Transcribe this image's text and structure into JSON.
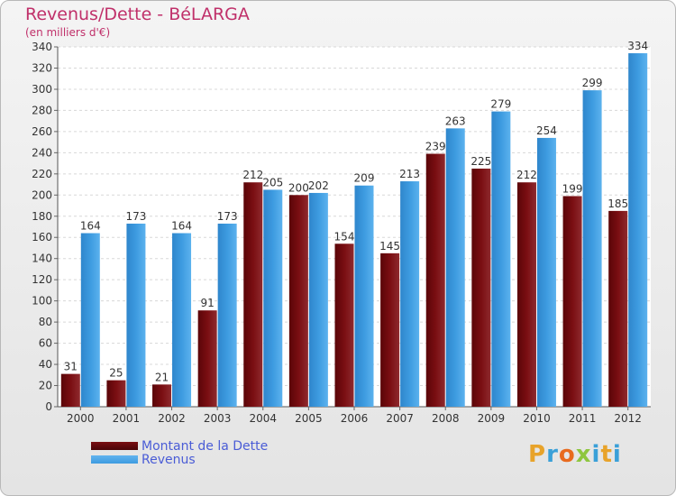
{
  "title": "Revenus/Dette - BéLARGA",
  "subtitle": "(en milliers d'€)",
  "brand": "Proxiti",
  "colors": {
    "dette": "#7a0e12",
    "revenus": "#3d9be0",
    "title": "#c0306a",
    "brand": [
      "#e8a32a",
      "#3aa0d8",
      "#e86a1e",
      "#8ec63f",
      "#3aa0d8",
      "#e8a32a",
      "#3aa0d8"
    ]
  },
  "chart_data": {
    "type": "bar",
    "title": "Revenus/Dette - BéLARGA",
    "subtitle": "(en milliers d'€)",
    "categories": [
      "2000",
      "2001",
      "2002",
      "2003",
      "2004",
      "2005",
      "2006",
      "2007",
      "2008",
      "2009",
      "2010",
      "2011",
      "2012"
    ],
    "series": [
      {
        "name": "Montant de la Dette",
        "values": [
          31,
          25,
          21,
          91,
          212,
          200,
          154,
          145,
          239,
          225,
          212,
          199,
          185
        ]
      },
      {
        "name": "Revenus",
        "values": [
          164,
          173,
          164,
          173,
          205,
          202,
          209,
          213,
          263,
          279,
          254,
          299,
          334
        ]
      }
    ],
    "ylim": [
      0,
      340
    ],
    "yticks": [
      0,
      20,
      40,
      60,
      80,
      100,
      120,
      140,
      160,
      180,
      200,
      220,
      240,
      260,
      280,
      300,
      320,
      340
    ],
    "grid": true,
    "legend": "bottom-left"
  }
}
